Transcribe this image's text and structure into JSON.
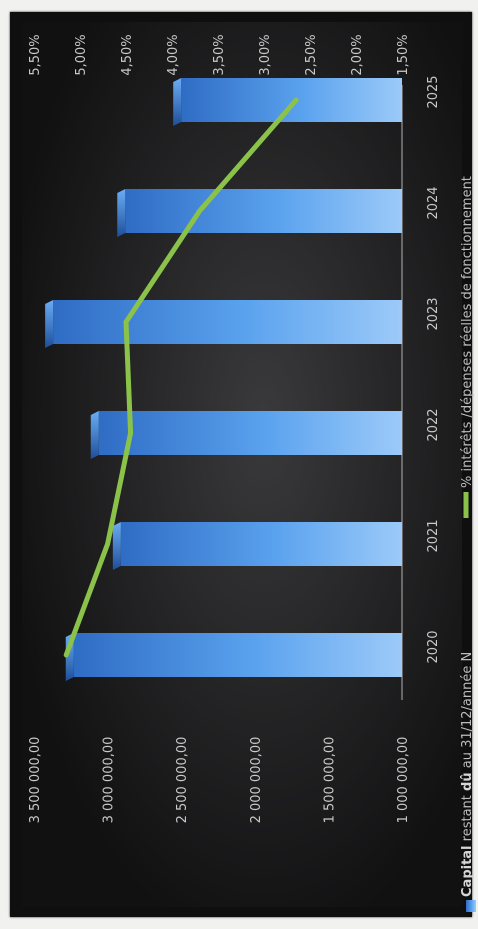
{
  "chart_data": {
    "type": "bar",
    "categories": [
      "2020",
      "2021",
      "2022",
      "2023",
      "2024",
      "2025"
    ],
    "series": [
      {
        "name": "Capital restant dû au 31/12/année N",
        "type": "bar",
        "axis": "left",
        "color": "#4a8fe0",
        "values": [
          3230000,
          2910000,
          3060000,
          3370000,
          2880000,
          2500000
        ]
      },
      {
        "name": "% intérêts /dépenses réelles de fonctionnement",
        "type": "line",
        "axis": "right",
        "color": "#8bc34a",
        "values": [
          5.15,
          4.7,
          4.45,
          4.5,
          3.7,
          2.65
        ]
      }
    ],
    "left_axis": {
      "ylim": [
        1000000,
        3500000
      ],
      "tick_values": [
        1000000,
        1500000,
        2000000,
        2500000,
        3000000,
        3500000
      ],
      "tick_labels": [
        "1 000 000,00",
        "1 500 000,00",
        "2 000 000,00",
        "2 500 000,00",
        "3 000 000,00",
        "3 500 000,00"
      ]
    },
    "right_axis": {
      "ylim": [
        1.5,
        5.5
      ],
      "tick_values": [
        1.5,
        2.0,
        2.5,
        3.0,
        3.5,
        4.0,
        4.5,
        5.0,
        5.5
      ],
      "tick_labels": [
        "1,50%",
        "2,00%",
        "2,50%",
        "3,00%",
        "3,50%",
        "4,00%",
        "4,50%",
        "5,00%",
        "5,50%"
      ]
    },
    "legend": {
      "placement": "bottom",
      "bar_label_bold": "Capital",
      "bar_label_mid": " restant ",
      "bar_label_bold2": "dû",
      "bar_label_rest": " au 31/12/année N",
      "line_label": "% intérêts /dépenses réelles de fonctionnement"
    },
    "orientation": "rotated 90° clockwise",
    "grid": false
  }
}
